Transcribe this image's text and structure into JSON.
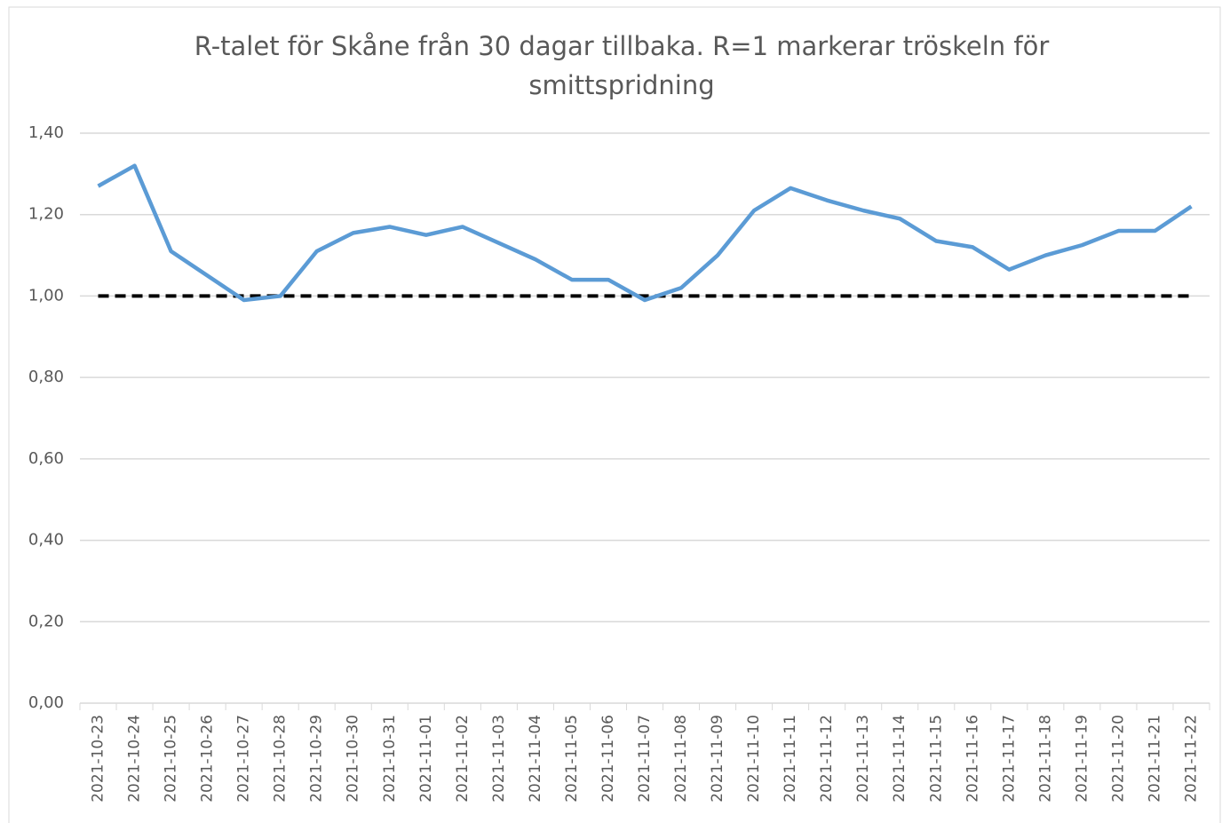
{
  "chart_data": {
    "type": "line",
    "title": "R-talet för Skåne från 30 dagar tillbaka. R=1 markerar tröskeln för smittspridning",
    "categories": [
      "2021-10-23",
      "2021-10-24",
      "2021-10-25",
      "2021-10-26",
      "2021-10-27",
      "2021-10-28",
      "2021-10-29",
      "2021-10-30",
      "2021-10-31",
      "2021-11-01",
      "2021-11-02",
      "2021-11-03",
      "2021-11-04",
      "2021-11-05",
      "2021-11-06",
      "2021-11-07",
      "2021-11-08",
      "2021-11-09",
      "2021-11-10",
      "2021-11-11",
      "2021-11-12",
      "2021-11-13",
      "2021-11-14",
      "2021-11-15",
      "2021-11-16",
      "2021-11-17",
      "2021-11-18",
      "2021-11-19",
      "2021-11-20",
      "2021-11-21",
      "2021-11-22"
    ],
    "values": [
      1.27,
      1.32,
      1.11,
      1.05,
      0.99,
      1.0,
      1.11,
      1.155,
      1.17,
      1.15,
      1.17,
      1.13,
      1.09,
      1.04,
      1.04,
      0.99,
      1.02,
      1.1,
      1.21,
      1.265,
      1.235,
      1.21,
      1.19,
      1.135,
      1.12,
      1.065,
      1.1,
      1.125,
      1.16,
      1.16,
      1.22
    ],
    "color": "#5b9bd5",
    "threshold": 1,
    "threshold_color": "#000000",
    "ylim": [
      0,
      1.4
    ],
    "yticks": [
      {
        "value": 0,
        "label": "0,00"
      },
      {
        "value": 0.2,
        "label": "0,20"
      },
      {
        "value": 0.4,
        "label": "0,40"
      },
      {
        "value": 0.6,
        "label": "0,60"
      },
      {
        "value": 0.8,
        "label": "0,80"
      },
      {
        "value": 1,
        "label": "1,00"
      },
      {
        "value": 1.2,
        "label": "1,20"
      },
      {
        "value": 1.4,
        "label": "1,40"
      }
    ],
    "grid": true
  }
}
